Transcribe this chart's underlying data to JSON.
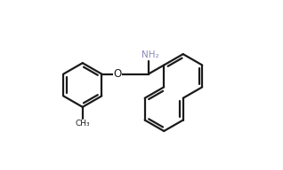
{
  "bg_color": "#ffffff",
  "line_color": "#1a1a1a",
  "nh2_color": "#8888bb",
  "lw": 1.6,
  "figsize": [
    3.18,
    1.92
  ],
  "dpi": 100,
  "xlim": [
    -1,
    11
  ],
  "ylim": [
    -1,
    7
  ],
  "methyl_label": "CH₃",
  "nh2_label": "NH₂",
  "o_label": "O"
}
